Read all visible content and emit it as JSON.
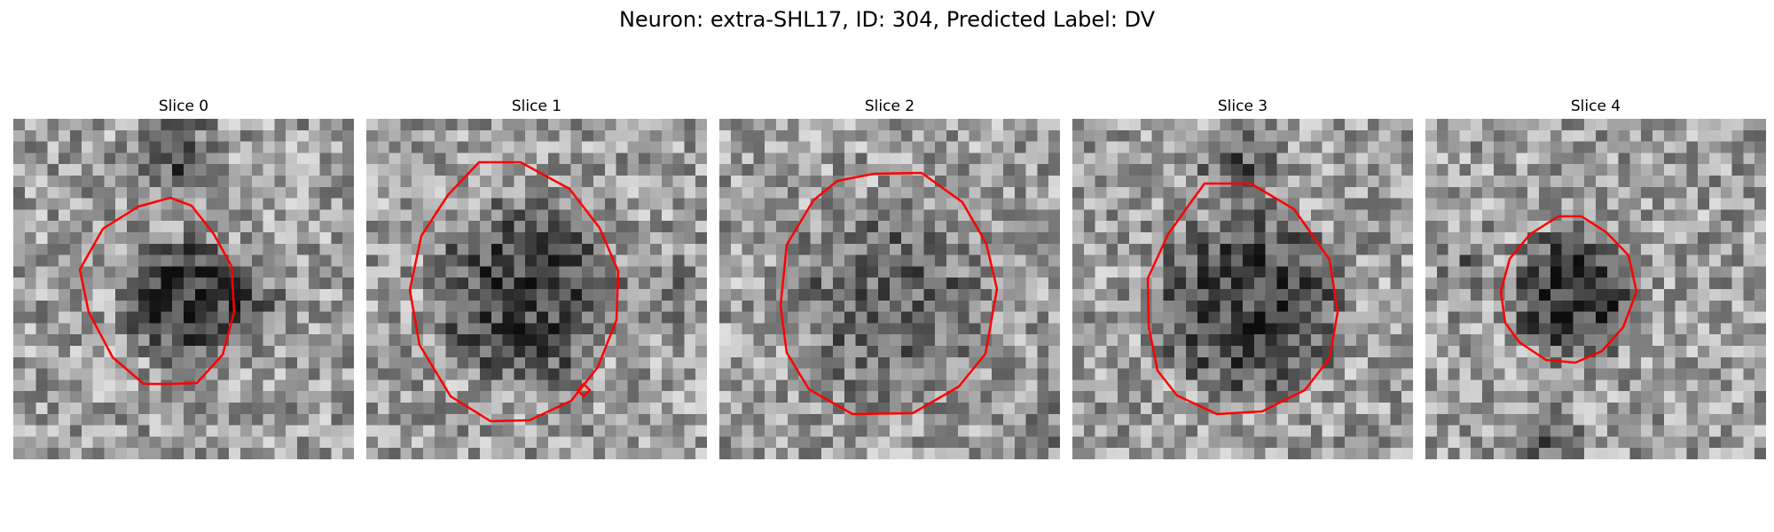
{
  "figure": {
    "title": "Neuron: extra-SHL17, ID: 304, Predicted Label: DV",
    "contour_color": "#ff0000",
    "colormap": "gray"
  },
  "slices": [
    {
      "label": "Slice 0"
    },
    {
      "label": "Slice 1"
    },
    {
      "label": "Slice 2"
    },
    {
      "label": "Slice 3"
    },
    {
      "label": "Slice 4"
    }
  ]
}
